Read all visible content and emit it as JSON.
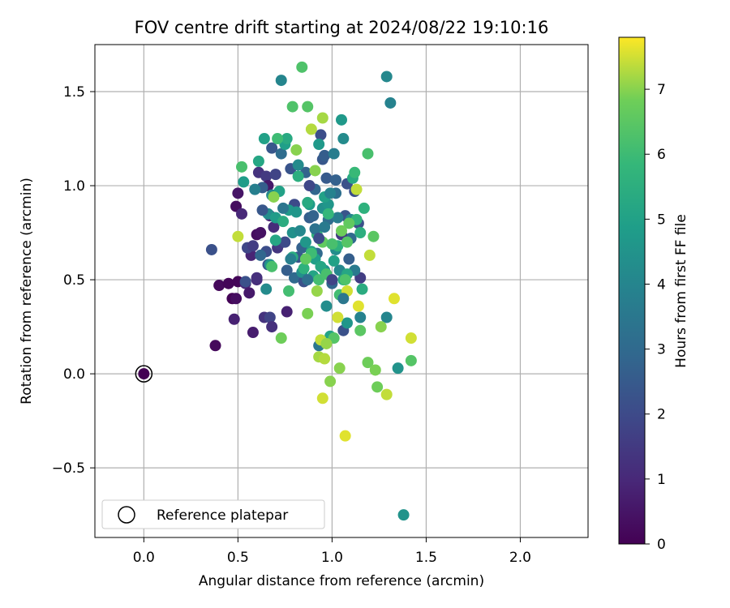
{
  "chart_data": {
    "type": "scatter",
    "title": "FOV centre drift starting at 2024/08/22 19:10:16",
    "xlabel": "Angular distance from reference (arcmin)",
    "ylabel": "Rotation from reference (arcmin)",
    "xlim": [
      -0.26,
      2.36
    ],
    "ylim": [
      -0.87,
      1.75
    ],
    "xticks": [
      0.0,
      0.5,
      1.0,
      1.5,
      2.0
    ],
    "xtick_labels": [
      "0.0",
      "0.5",
      "1.0",
      "1.5",
      "2.0"
    ],
    "yticks": [
      -0.5,
      0.0,
      0.5,
      1.0,
      1.5
    ],
    "ytick_labels": [
      "−0.5",
      "0.0",
      "0.5",
      "1.0",
      "1.5"
    ],
    "grid": true,
    "colorbar": {
      "label": "Hours from first FF file",
      "colormap": "viridis",
      "range": [
        0,
        7.8
      ],
      "ticks": [
        0,
        1,
        2,
        3,
        4,
        5,
        6,
        7
      ],
      "tick_labels": [
        "0",
        "1",
        "2",
        "3",
        "4",
        "5",
        "6",
        "7"
      ]
    },
    "legend": {
      "position": "lower-left",
      "entries": [
        "Reference platepar"
      ]
    },
    "reference_point": {
      "x": 0.0,
      "y": 0.0,
      "c": 0.0
    },
    "points": [
      [
        0.38,
        0.15,
        0.2
      ],
      [
        0.4,
        0.47,
        0.2
      ],
      [
        0.45,
        0.48,
        0.1
      ],
      [
        0.47,
        0.4,
        0.05
      ],
      [
        0.49,
        0.4,
        0.3
      ],
      [
        0.48,
        0.29,
        0.8
      ],
      [
        0.5,
        0.49,
        0.1
      ],
      [
        0.49,
        0.89,
        0.3
      ],
      [
        0.5,
        0.96,
        0.5
      ],
      [
        0.54,
        0.48,
        1.0
      ],
      [
        0.56,
        0.43,
        0.6
      ],
      [
        0.58,
        0.22,
        0.7
      ],
      [
        0.6,
        0.74,
        0.3
      ],
      [
        0.62,
        0.75,
        0.4
      ],
      [
        0.64,
        0.3,
        1.3
      ],
      [
        0.67,
        0.3,
        1.8
      ],
      [
        0.68,
        0.25,
        1.2
      ],
      [
        0.76,
        0.33,
        0.8
      ],
      [
        0.52,
        0.85,
        1.0
      ],
      [
        0.57,
        0.63,
        0.9
      ],
      [
        0.6,
        0.5,
        1.1
      ],
      [
        0.61,
        1.07,
        1.3
      ],
      [
        0.65,
        1.05,
        1.5
      ],
      [
        0.66,
        1.0,
        0.6
      ],
      [
        0.67,
        0.84,
        0.9
      ],
      [
        0.69,
        0.78,
        1.1
      ],
      [
        0.7,
        1.06,
        1.8
      ],
      [
        0.71,
        0.67,
        1.4
      ],
      [
        0.72,
        0.69,
        1.6
      ],
      [
        0.55,
        0.67,
        1.9
      ],
      [
        0.36,
        0.66,
        2.2
      ],
      [
        0.54,
        0.49,
        2.2
      ],
      [
        0.63,
        0.99,
        2.6
      ],
      [
        0.65,
        0.65,
        2.1
      ],
      [
        0.66,
        0.58,
        2.3
      ],
      [
        0.68,
        1.2,
        2.4
      ],
      [
        0.73,
        1.17,
        3.1
      ],
      [
        0.75,
        0.7,
        2.0
      ],
      [
        0.76,
        0.55,
        2.6
      ],
      [
        0.78,
        1.09,
        2.3
      ],
      [
        0.8,
        0.9,
        2.0
      ],
      [
        0.8,
        0.51,
        3.0
      ],
      [
        0.82,
        0.62,
        2.4
      ],
      [
        0.84,
        0.67,
        2.7
      ],
      [
        0.85,
        0.49,
        2.2
      ],
      [
        0.86,
        1.07,
        2.8
      ],
      [
        0.88,
        0.83,
        2.6
      ],
      [
        0.9,
        0.84,
        2.8
      ],
      [
        0.91,
        0.98,
        2.9
      ],
      [
        0.92,
        0.64,
        3.0
      ],
      [
        0.94,
        1.27,
        2.1
      ],
      [
        0.95,
        1.14,
        2.4
      ],
      [
        0.96,
        1.16,
        2.6
      ],
      [
        0.97,
        1.04,
        2.5
      ],
      [
        0.98,
        0.82,
        3.1
      ],
      [
        1.0,
        0.48,
        2.9
      ],
      [
        1.02,
        1.03,
        2.7
      ],
      [
        1.04,
        0.55,
        2.8
      ],
      [
        1.06,
        0.23,
        2.2
      ],
      [
        1.07,
        0.84,
        2.3
      ],
      [
        1.08,
        1.01,
        2.2
      ],
      [
        1.09,
        0.61,
        2.6
      ],
      [
        1.1,
        0.72,
        3.0
      ],
      [
        1.12,
        0.97,
        2.1
      ],
      [
        1.14,
        0.8,
        2.2
      ],
      [
        1.15,
        0.51,
        1.6
      ],
      [
        1.05,
        0.74,
        1.5
      ],
      [
        1.02,
        0.96,
        3.2
      ],
      [
        0.93,
        0.15,
        3.5
      ],
      [
        0.97,
        0.36,
        4.3
      ],
      [
        1.08,
        0.27,
        4.6
      ],
      [
        1.12,
        0.55,
        3.6
      ],
      [
        1.15,
        0.3,
        3.9
      ],
      [
        1.1,
        0.82,
        4.0
      ],
      [
        0.73,
        1.56,
        4.0
      ],
      [
        1.29,
        1.58,
        4.1
      ],
      [
        1.31,
        1.44,
        3.9
      ],
      [
        1.29,
        0.3,
        4.0
      ],
      [
        1.35,
        0.03,
        4.5
      ],
      [
        1.38,
        -0.75,
        4.5
      ],
      [
        0.65,
        0.45,
        4.2
      ],
      [
        0.67,
        0.58,
        4.5
      ],
      [
        0.66,
        0.85,
        4.3
      ],
      [
        0.68,
        0.95,
        4.1
      ],
      [
        0.7,
        0.83,
        4.8
      ],
      [
        0.72,
        0.97,
        5.0
      ],
      [
        0.75,
        1.22,
        4.9
      ],
      [
        0.77,
        0.87,
        4.7
      ],
      [
        0.79,
        0.75,
        4.4
      ],
      [
        0.81,
        0.86,
        4.6
      ],
      [
        0.82,
        1.11,
        4.2
      ],
      [
        0.84,
        0.54,
        4.4
      ],
      [
        0.86,
        0.7,
        4.6
      ],
      [
        0.88,
        0.9,
        4.8
      ],
      [
        0.89,
        0.65,
        5.0
      ],
      [
        0.91,
        0.61,
        4.9
      ],
      [
        0.93,
        1.22,
        4.7
      ],
      [
        0.95,
        0.88,
        4.4
      ],
      [
        0.96,
        0.55,
        4.5
      ],
      [
        0.98,
        0.9,
        4.6
      ],
      [
        1.01,
        1.17,
        3.7
      ],
      [
        1.02,
        0.66,
        4.3
      ],
      [
        1.04,
        0.55,
        4.1
      ],
      [
        1.05,
        1.35,
        4.7
      ],
      [
        1.06,
        1.25,
        4.2
      ],
      [
        0.53,
        1.02,
        4.8
      ],
      [
        0.61,
        1.13,
        5.2
      ],
      [
        0.59,
        0.98,
        3.8
      ],
      [
        0.64,
        1.25,
        5.0
      ],
      [
        0.7,
        0.71,
        5.2
      ],
      [
        0.74,
        0.81,
        5.4
      ],
      [
        0.76,
        1.25,
        5.3
      ],
      [
        0.79,
        0.62,
        5.4
      ],
      [
        0.82,
        1.05,
        5.5
      ],
      [
        0.85,
        0.56,
        5.6
      ],
      [
        0.87,
        0.91,
        5.3
      ],
      [
        0.9,
        0.52,
        5.1
      ],
      [
        0.92,
        0.74,
        5.7
      ],
      [
        0.94,
        0.57,
        5.2
      ],
      [
        0.96,
        0.94,
        5.0
      ],
      [
        0.99,
        0.2,
        5.1
      ],
      [
        1.01,
        0.6,
        5.0
      ],
      [
        1.03,
        0.68,
        5.6
      ],
      [
        1.06,
        0.5,
        5.4
      ],
      [
        1.08,
        0.53,
        5.2
      ],
      [
        1.11,
        1.04,
        5.3
      ],
      [
        1.13,
        0.82,
        5.7
      ],
      [
        1.15,
        0.75,
        5.5
      ],
      [
        1.16,
        0.45,
        5.4
      ],
      [
        1.17,
        0.88,
        5.6
      ],
      [
        0.52,
        1.1,
        6.2
      ],
      [
        0.68,
        0.57,
        6.2
      ],
      [
        0.71,
        1.25,
        6.0
      ],
      [
        0.77,
        0.44,
        6.1
      ],
      [
        0.79,
        1.42,
        6.3
      ],
      [
        0.84,
        1.63,
        6.3
      ],
      [
        0.87,
        1.42,
        6.4
      ],
      [
        0.89,
        0.64,
        6.0
      ],
      [
        0.93,
        0.5,
        6.1
      ],
      [
        0.95,
        0.7,
        6.6
      ],
      [
        0.97,
        0.53,
        6.2
      ],
      [
        1.0,
        0.69,
        6.2
      ],
      [
        1.01,
        0.19,
        6.4
      ],
      [
        1.04,
        0.42,
        6.1
      ],
      [
        1.07,
        0.5,
        6.3
      ],
      [
        1.08,
        0.7,
        6.4
      ],
      [
        1.09,
        0.8,
        6.6
      ],
      [
        1.12,
        1.07,
        5.9
      ],
      [
        1.15,
        0.23,
        6.5
      ],
      [
        1.19,
        1.17,
        6.2
      ],
      [
        1.22,
        0.73,
        6.5
      ],
      [
        1.19,
        0.06,
        6.8
      ],
      [
        1.23,
        0.02,
        6.9
      ],
      [
        1.24,
        -0.07,
        6.8
      ],
      [
        1.42,
        0.07,
        6.4
      ],
      [
        0.69,
        0.94,
        7.0
      ],
      [
        0.73,
        0.19,
        6.8
      ],
      [
        0.81,
        1.19,
        7.0
      ],
      [
        0.87,
        0.32,
        6.9
      ],
      [
        0.89,
        1.3,
        7.3
      ],
      [
        0.91,
        1.08,
        7.0
      ],
      [
        0.92,
        0.44,
        7.1
      ],
      [
        0.93,
        0.09,
        7.2
      ],
      [
        0.94,
        0.18,
        7.4
      ],
      [
        0.95,
        1.36,
        7.2
      ],
      [
        0.95,
        -0.13,
        7.5
      ],
      [
        0.96,
        0.08,
        7.3
      ],
      [
        0.97,
        0.16,
        7.1
      ],
      [
        0.99,
        -0.04,
        7.0
      ],
      [
        1.03,
        0.3,
        7.5
      ],
      [
        1.04,
        0.03,
        7.0
      ],
      [
        1.07,
        -0.33,
        7.6
      ],
      [
        1.08,
        0.44,
        7.5
      ],
      [
        1.13,
        0.98,
        7.4
      ],
      [
        1.14,
        0.36,
        7.6
      ],
      [
        1.2,
        0.63,
        7.4
      ],
      [
        1.26,
        0.25,
        7.0
      ],
      [
        1.29,
        -0.11,
        7.4
      ],
      [
        1.33,
        0.4,
        7.6
      ],
      [
        1.42,
        0.19,
        7.5
      ],
      [
        0.5,
        0.73,
        7.4
      ],
      [
        0.6,
        0.51,
        1.2
      ],
      [
        0.62,
        0.63,
        2.9
      ],
      [
        0.74,
        0.88,
        3.4
      ],
      [
        0.78,
        0.61,
        3.8
      ],
      [
        0.83,
        0.76,
        4.1
      ],
      [
        0.87,
        0.5,
        3.2
      ],
      [
        0.91,
        0.77,
        3.3
      ],
      [
        0.96,
        0.78,
        3.6
      ],
      [
        0.99,
        0.96,
        3.9
      ],
      [
        1.03,
        0.83,
        3.7
      ],
      [
        1.06,
        0.4,
        3.5
      ],
      [
        0.58,
        0.68,
        1.6
      ],
      [
        0.63,
        0.87,
        2.4
      ],
      [
        0.88,
        1.0,
        1.9
      ],
      [
        0.93,
        0.72,
        2.0
      ],
      [
        1.0,
        0.5,
        1.8
      ],
      [
        0.86,
        0.61,
        6.6
      ],
      [
        0.98,
        0.85,
        5.8
      ],
      [
        1.05,
        0.76,
        6.8
      ]
    ]
  }
}
